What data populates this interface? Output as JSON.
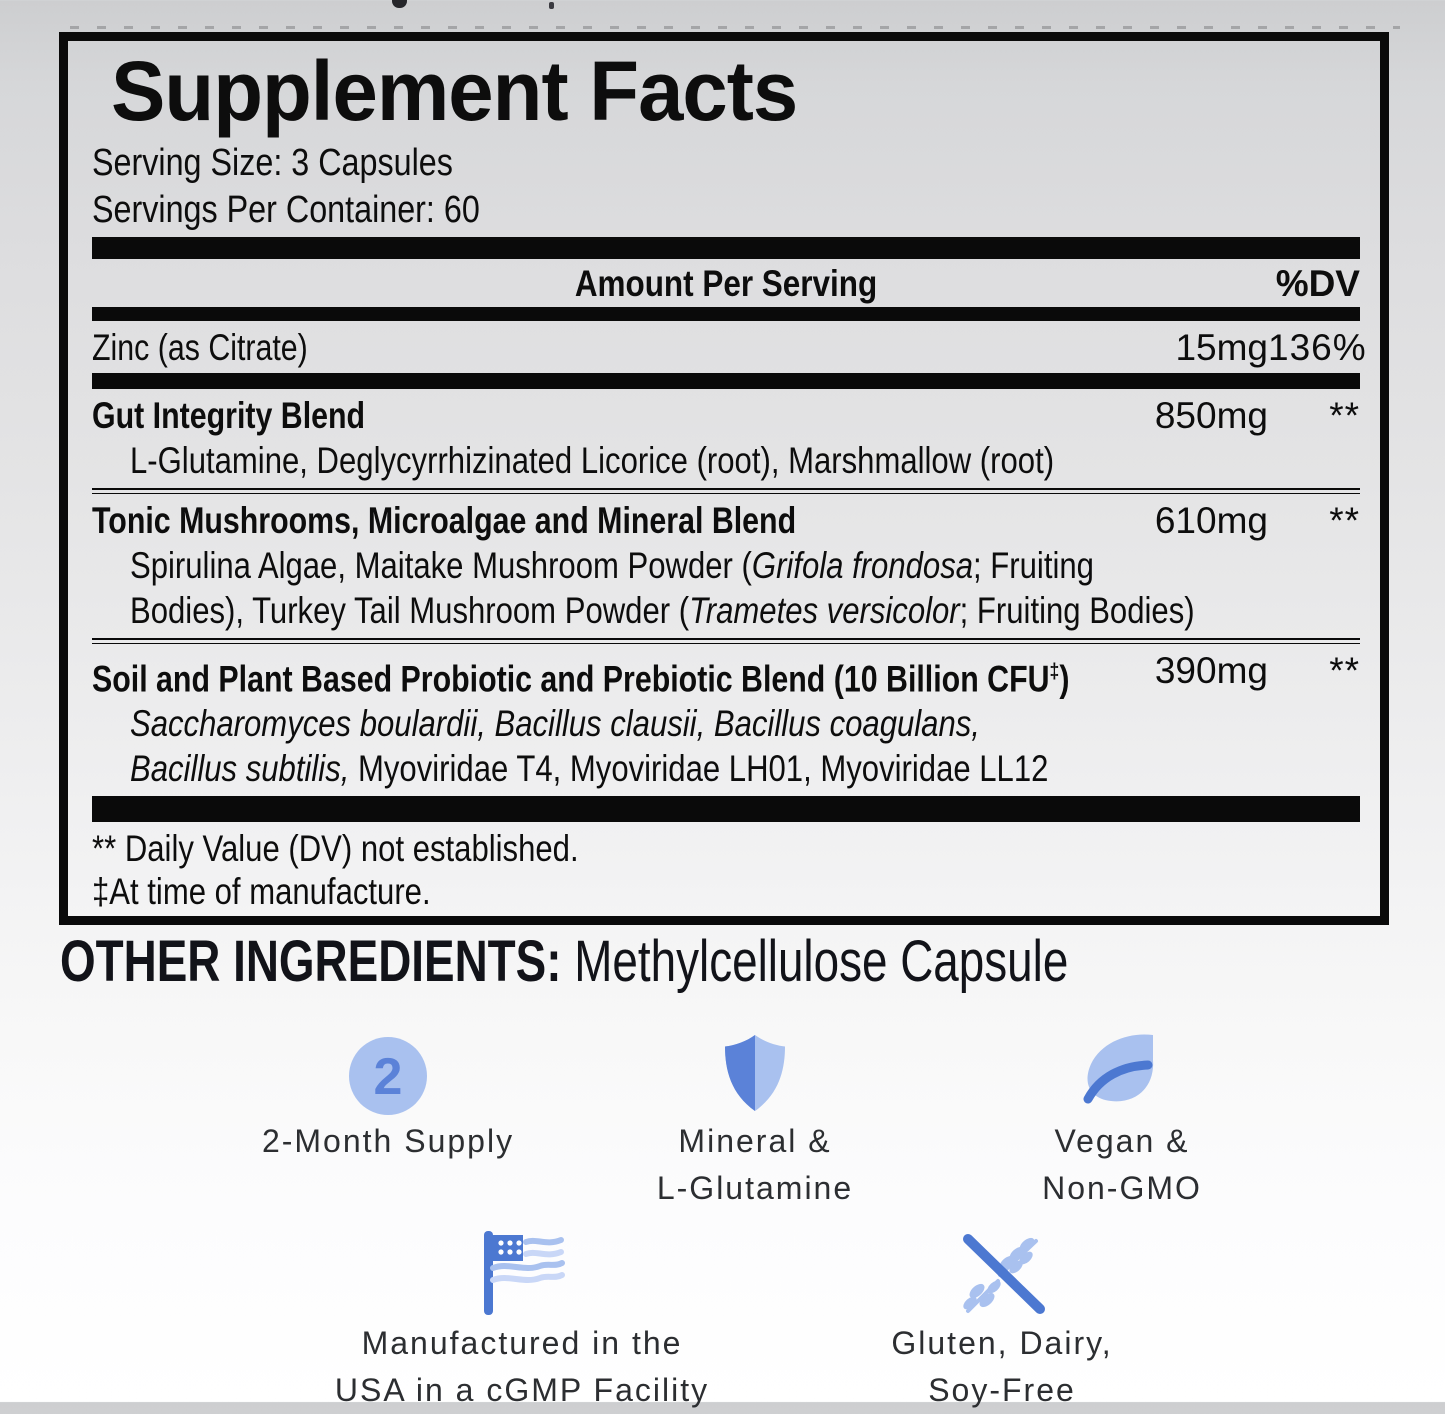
{
  "panel": {
    "title": "Supplement Facts",
    "serving_size": "Serving Size: 3 Capsules",
    "servings_per_container": "Servings Per Container: 60",
    "columns": {
      "amount_header": "Amount Per Serving",
      "dv_header": "%DV"
    },
    "rows": [
      {
        "name": "Zinc (as Citrate)",
        "amount": "15mg",
        "dv": "136%"
      },
      {
        "name": "Gut Integrity Blend",
        "amount": "850mg",
        "dv": "**",
        "sub_lines": [
          [
            {
              "text": "L-Glutamine, Deglycyrrhizinated Licorice (root), Marshmallow (root)",
              "italic": false
            }
          ]
        ]
      },
      {
        "name": "Tonic Mushrooms, Microalgae and Mineral Blend",
        "amount": "610mg",
        "dv": "**",
        "sub_lines": [
          [
            {
              "text": "Spirulina Algae, Maitake Mushroom Powder (",
              "italic": false
            },
            {
              "text": "Grifola frondosa",
              "italic": true
            },
            {
              "text": "; Fruiting",
              "italic": false
            }
          ],
          [
            {
              "text": "Bodies), Turkey Tail Mushroom Powder (",
              "italic": false
            },
            {
              "text": "Trametes versicolor",
              "italic": true
            },
            {
              "text": "; Fruiting Bodies)",
              "italic": false
            }
          ]
        ]
      },
      {
        "name": "Soil and Plant Based Probiotic and Prebiotic Blend (10 Billion CFU",
        "name_sup": "‡",
        "name_end": ")",
        "amount": "390mg",
        "dv": "**",
        "sub_lines": [
          [
            {
              "text": "Saccharomyces boulardii, Bacillus clausii, Bacillus coagulans,",
              "italic": true
            }
          ],
          [
            {
              "text": "Bacillus subtilis,",
              "italic": true
            },
            {
              "text": " Myoviridae T4, Myoviridae LH01, Myoviridae LL12",
              "italic": false
            }
          ]
        ]
      }
    ],
    "footnotes": [
      "** Daily Value (DV) not established.",
      "‡At time of manufacture."
    ]
  },
  "other_ingredients": {
    "label": "OTHER INGREDIENTS:",
    "value": "Methylcellulose Capsule"
  },
  "badges": [
    {
      "icon": "two-month-supply-icon",
      "icon_text": "2",
      "lines": [
        "2-Month Supply"
      ]
    },
    {
      "icon": "shield-icon",
      "lines": [
        "Mineral &",
        "L-Glutamine"
      ]
    },
    {
      "icon": "leaf-icon",
      "lines": [
        "Vegan &",
        "Non-GMO"
      ]
    },
    {
      "icon": "usa-flag-icon",
      "lines": [
        "Manufactured in the",
        "USA in a cGMP Facility"
      ]
    },
    {
      "icon": "gluten-free-icon",
      "lines": [
        "Gluten, Dairy,",
        "Soy-Free"
      ]
    }
  ],
  "colors": {
    "accent_dark": "#4c78d1",
    "accent_mid": "#5b82d8",
    "accent_light": "#a9c1ef",
    "accent_lighter": "#c9d7f7",
    "panel_text": "#0d0d0d",
    "label_text": "#2c2e31"
  }
}
